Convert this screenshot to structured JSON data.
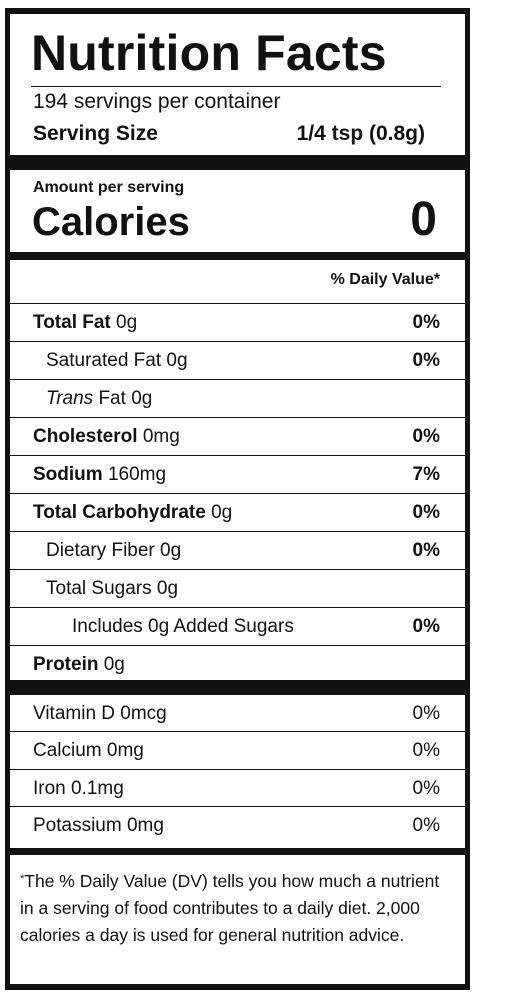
{
  "header": {
    "title": "Nutrition Facts",
    "servings": "194 servings per container",
    "serving_size_label": "Serving Size",
    "serving_size_value": "1/4 tsp (0.8g)"
  },
  "calories": {
    "amount_label": "Amount per serving",
    "label": "Calories",
    "value": "0"
  },
  "nutrients": {
    "daily_value_header": "% Daily Value*",
    "rows": [
      {
        "name": "Total Fat",
        "amount": "0g",
        "dv": "0%"
      },
      {
        "name": "Saturated Fat",
        "amount": "0g",
        "dv": "0%"
      },
      {
        "italic_prefix": "Trans",
        "name": "Fat",
        "amount": "0g"
      },
      {
        "name": "Cholesterol",
        "amount": "0mg",
        "dv": "0%"
      },
      {
        "name": "Sodium",
        "amount": "160mg",
        "dv": "7%"
      },
      {
        "name": "Total Carbohydrate",
        "amount": "0g",
        "dv": "0%"
      },
      {
        "name": "Dietary Fiber",
        "amount": "0g",
        "dv": "0%"
      },
      {
        "name": "Total Sugars",
        "amount": "0g"
      },
      {
        "name": "Includes 0g Added Sugars",
        "dv": "0%"
      },
      {
        "name": "Protein",
        "amount": "0g"
      }
    ]
  },
  "vitamins": {
    "rows": [
      {
        "name": "Vitamin D 0mcg",
        "dv": "0%"
      },
      {
        "name": "Calcium 0mg",
        "dv": "0%"
      },
      {
        "name": "Iron 0.1mg",
        "dv": "0%"
      },
      {
        "name": "Potassium 0mg",
        "dv": "0%"
      }
    ]
  },
  "footnote": {
    "marker": "*",
    "text": "The % Daily Value (DV) tells you how much a nutrient in a serving of food contributes to a daily diet. 2,000 calories a day is used for general nutrition advice."
  }
}
